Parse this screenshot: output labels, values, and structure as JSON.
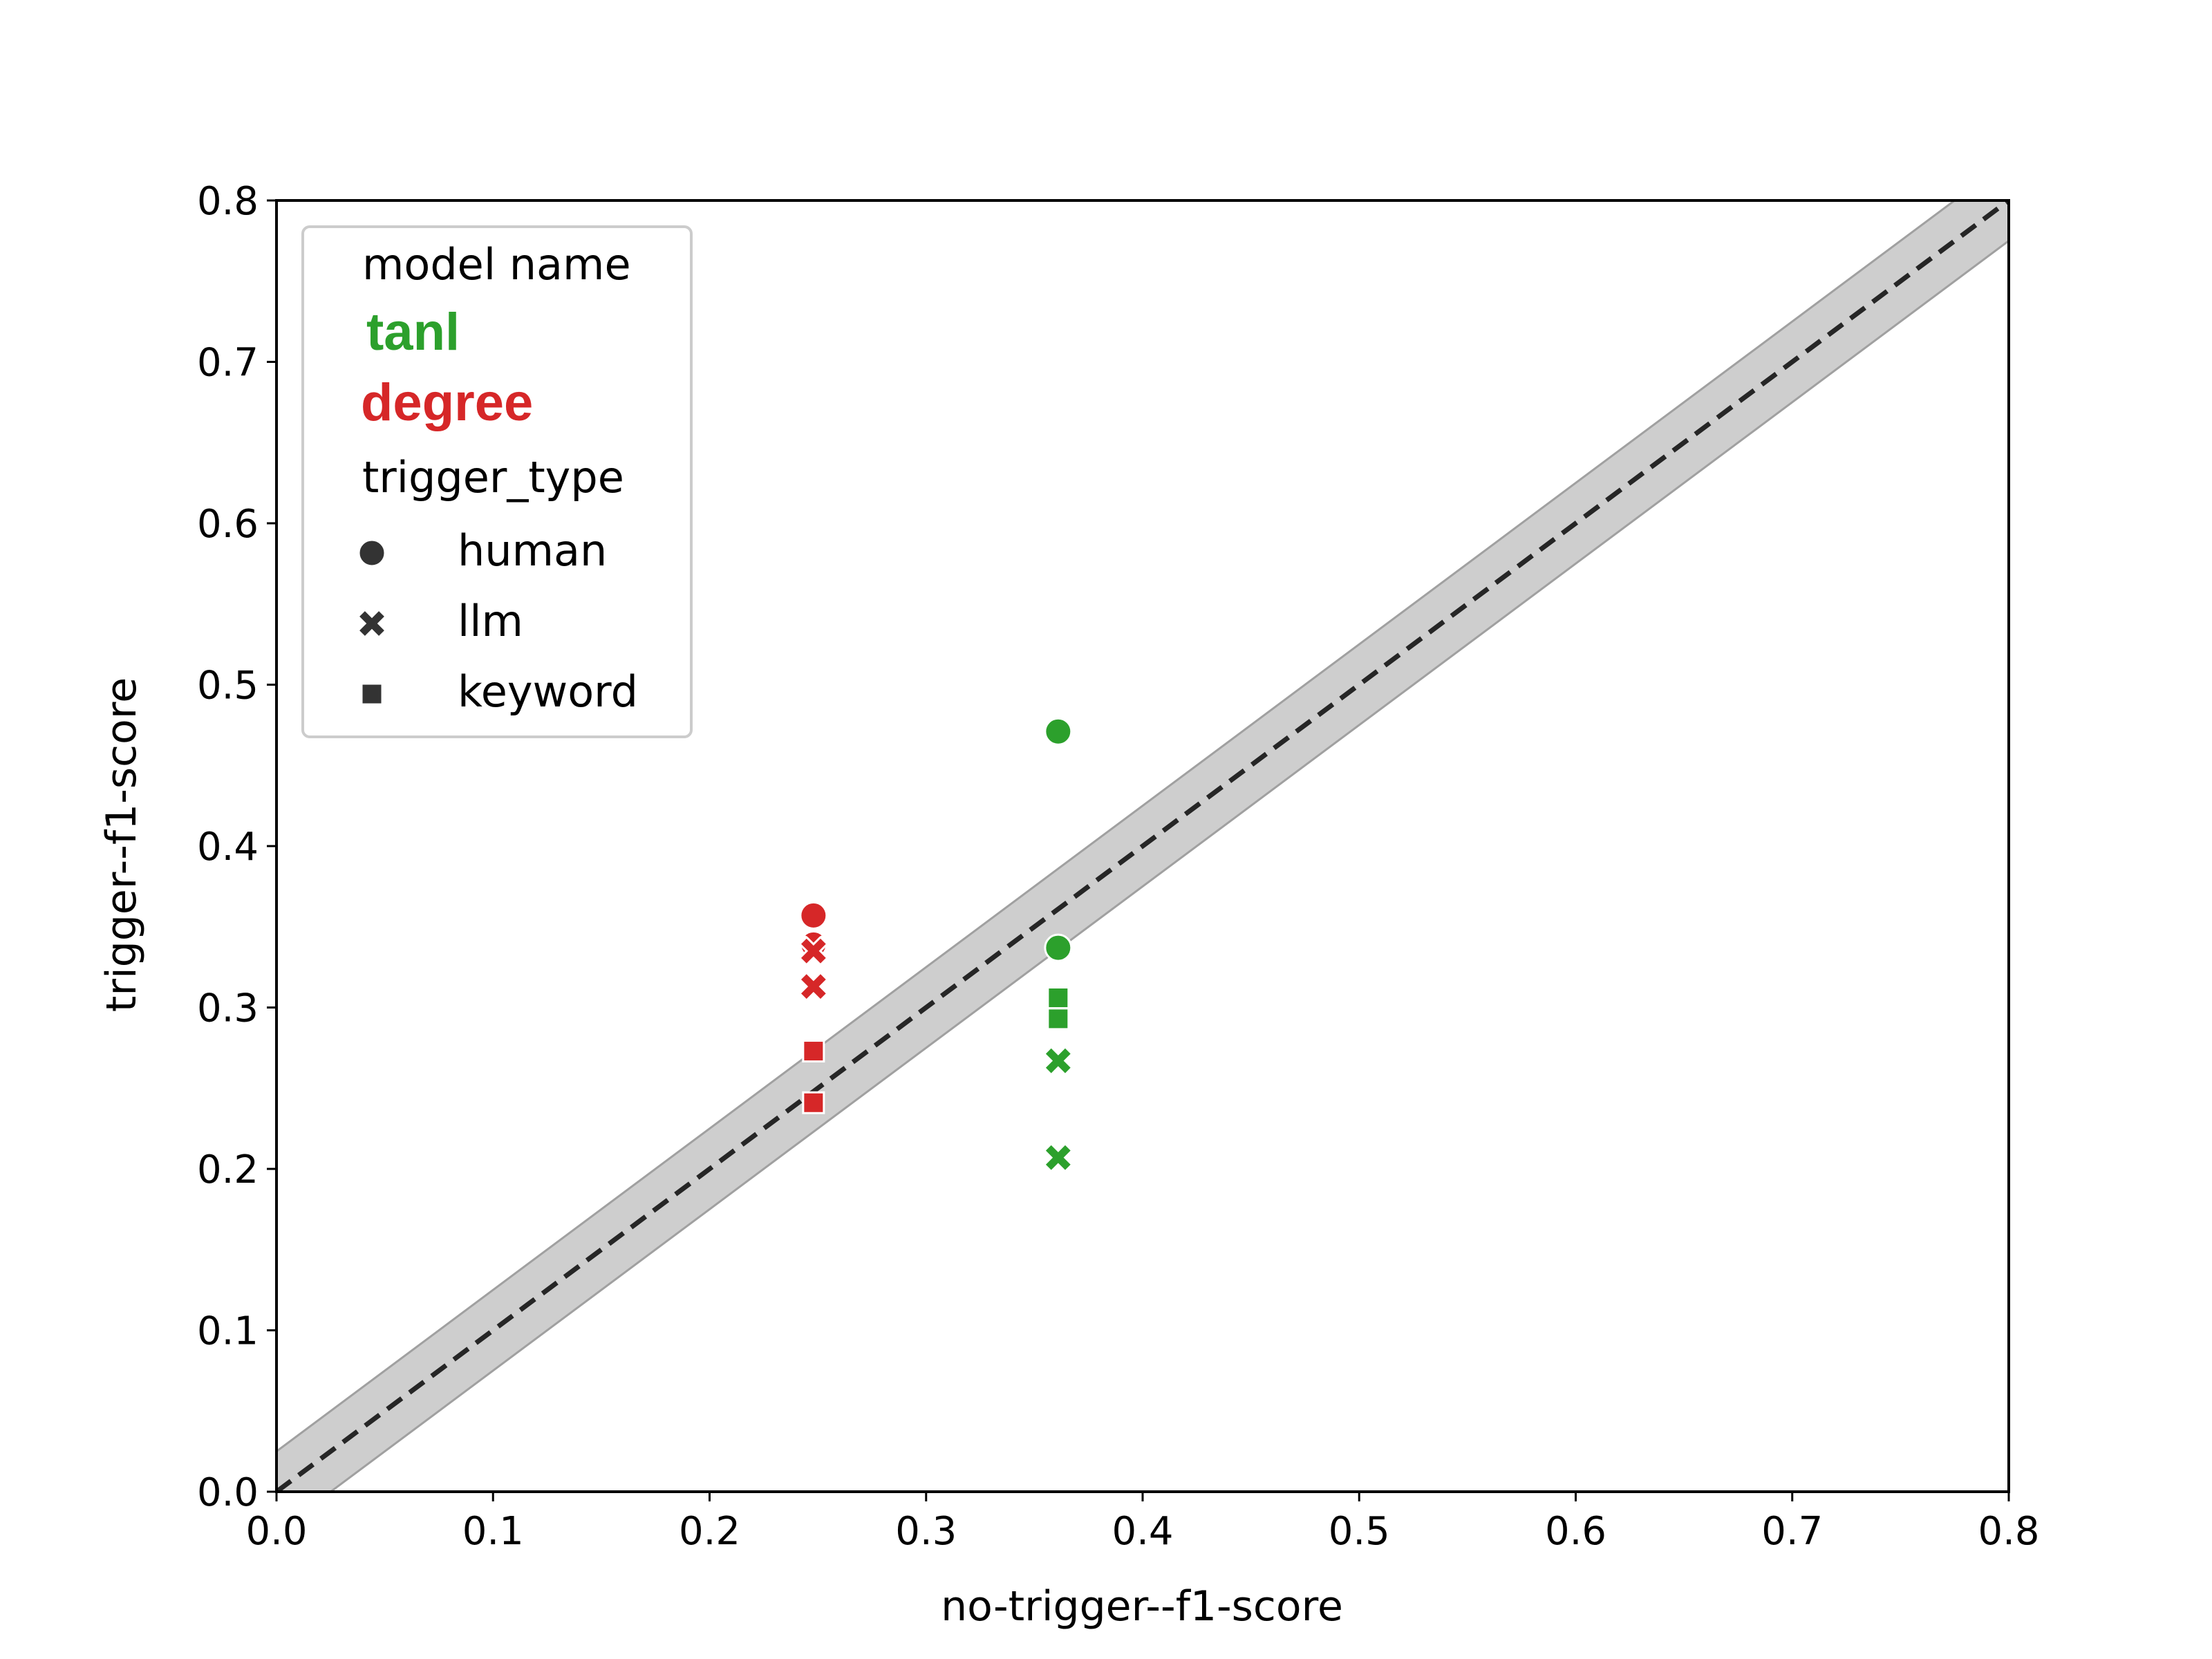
{
  "chart_data": {
    "type": "scatter",
    "title": "",
    "xlabel": "no-trigger--f1-score",
    "ylabel": "trigger--f1-score",
    "xlim": [
      0,
      0.8
    ],
    "ylim": [
      0,
      0.8
    ],
    "xticks": [
      "0.0",
      "0.1",
      "0.2",
      "0.3",
      "0.4",
      "0.5",
      "0.6",
      "0.7",
      "0.8"
    ],
    "yticks": [
      "0.0",
      "0.1",
      "0.2",
      "0.3",
      "0.4",
      "0.5",
      "0.6",
      "0.7",
      "0.8"
    ],
    "grid": false,
    "reference_line": {
      "style": "dashed",
      "from": [
        0,
        0
      ],
      "to": [
        0.8,
        0.8
      ],
      "band_halfwidth": 0.025
    },
    "legend": {
      "placement": "top-left",
      "hue_title": "model  name",
      "style_title": "trigger_type"
    },
    "models": [
      {
        "name": "tanl",
        "color": "#2ca02c"
      },
      {
        "name": "degree",
        "color": "#d62728"
      }
    ],
    "marker_types": [
      {
        "name": "human",
        "marker": "circle"
      },
      {
        "name": "llm",
        "marker": "x"
      },
      {
        "name": "keyword",
        "marker": "square"
      }
    ],
    "series": [
      {
        "model": "tanl",
        "trigger_type": "human",
        "points": [
          [
            0.361,
            0.471
          ],
          [
            0.361,
            0.337
          ]
        ]
      },
      {
        "model": "tanl",
        "trigger_type": "llm",
        "points": [
          [
            0.361,
            0.267
          ],
          [
            0.361,
            0.207
          ]
        ]
      },
      {
        "model": "tanl",
        "trigger_type": "keyword",
        "points": [
          [
            0.361,
            0.306
          ],
          [
            0.361,
            0.293
          ]
        ]
      },
      {
        "model": "degree",
        "trigger_type": "human",
        "points": [
          [
            0.248,
            0.357
          ],
          [
            0.248,
            0.339
          ]
        ]
      },
      {
        "model": "degree",
        "trigger_type": "llm",
        "points": [
          [
            0.248,
            0.335
          ],
          [
            0.248,
            0.313
          ]
        ]
      },
      {
        "model": "degree",
        "trigger_type": "keyword",
        "points": [
          [
            0.248,
            0.273
          ],
          [
            0.248,
            0.241
          ]
        ]
      }
    ]
  }
}
